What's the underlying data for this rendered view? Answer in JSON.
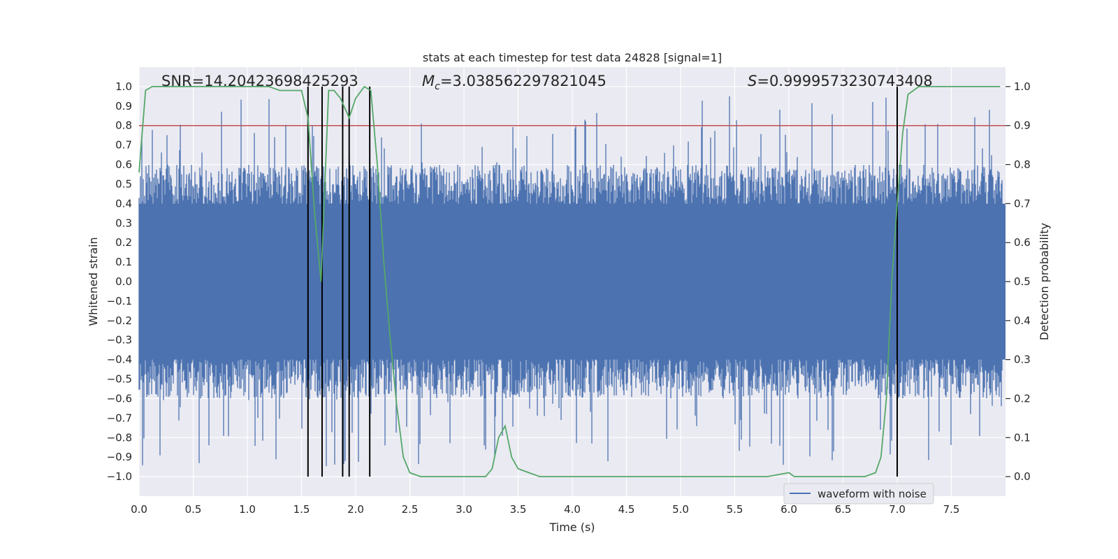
{
  "chart_data": {
    "type": "line",
    "title": "stats at each timestep for test data 24828 [signal=1]",
    "xlabel": "Time (s)",
    "ylabel": "Whitened strain",
    "y2label": "Detection probability",
    "xlim": [
      0.0,
      8.0
    ],
    "ylim": [
      -1.1,
      1.1
    ],
    "y2lim": [
      -0.05,
      1.05
    ],
    "x_ticks": [
      0.0,
      0.5,
      1.0,
      1.5,
      2.0,
      2.5,
      3.0,
      3.5,
      4.0,
      4.5,
      5.0,
      5.5,
      6.0,
      6.5,
      7.0,
      7.5
    ],
    "x_tick_labels": [
      "0.0",
      "0.5",
      "1.0",
      "1.5",
      "2.0",
      "2.5",
      "3.0",
      "3.5",
      "4.0",
      "4.5",
      "5.0",
      "5.5",
      "6.0",
      "6.5",
      "7.0",
      "7.5"
    ],
    "y_ticks": [
      -1.0,
      -0.9,
      -0.8,
      -0.7,
      -0.6,
      -0.5,
      -0.4,
      -0.3,
      -0.2,
      -0.1,
      0.0,
      0.1,
      0.2,
      0.3,
      0.4,
      0.5,
      0.6,
      0.7,
      0.8,
      0.9,
      1.0
    ],
    "y_tick_labels": [
      "−1.0",
      "−0.9",
      "−0.8",
      "−0.7",
      "−0.6",
      "−0.5",
      "−0.4",
      "−0.3",
      "−0.2",
      "−0.1",
      "0.0",
      "0.1",
      "0.2",
      "0.3",
      "0.4",
      "0.5",
      "0.6",
      "0.7",
      "0.8",
      "0.9",
      "1.0"
    ],
    "y2_ticks": [
      0.0,
      0.1,
      0.2,
      0.3,
      0.4,
      0.5,
      0.6,
      0.7,
      0.8,
      0.9,
      1.0
    ],
    "y2_tick_labels": [
      "0.0",
      "0.1",
      "0.2",
      "0.3",
      "0.4",
      "0.5",
      "0.6",
      "0.7",
      "0.8",
      "0.9",
      "1.0"
    ],
    "annotations": {
      "snr": "SNR=14.20423698425293",
      "mc_symbol": "M",
      "mc_sub": "c",
      "mc_value": "=3.038562297821045",
      "s_symbol": "S",
      "s_value": "=0.9999573230743408"
    },
    "threshold": {
      "value": 0.9,
      "axis": "y2",
      "color": "#c44e52"
    },
    "vertical_lines": [
      1.56,
      1.69,
      1.88,
      1.94,
      2.13,
      7.0
    ],
    "legend": {
      "position": "lower-right",
      "entries": [
        {
          "label": "waveform with noise",
          "color": "#4c72b0"
        }
      ]
    },
    "waveform": {
      "name": "waveform with noise",
      "color": "#4c72b0",
      "core_band": [
        -0.4,
        0.4
      ],
      "typical_range": [
        -0.55,
        0.55
      ],
      "max_excursions": [
        0.99,
        -0.99
      ],
      "note": "dense noisy signal spanning 0-8 s"
    },
    "series": [
      {
        "name": "detection probability",
        "axis": "y2",
        "color": "#55a868",
        "x": [
          0.0,
          0.06,
          0.12,
          0.2,
          0.4,
          0.6,
          0.8,
          1.0,
          1.2,
          1.3,
          1.4,
          1.5,
          1.56,
          1.62,
          1.68,
          1.75,
          1.8,
          1.86,
          1.94,
          2.0,
          2.08,
          2.14,
          2.2,
          2.26,
          2.32,
          2.38,
          2.44,
          2.5,
          2.6,
          2.8,
          2.98,
          3.1,
          3.2,
          3.26,
          3.32,
          3.38,
          3.44,
          3.5,
          3.6,
          3.7,
          3.8,
          4.0,
          4.2,
          4.5,
          5.0,
          5.1,
          5.3,
          5.5,
          5.7,
          5.8,
          5.9,
          6.0,
          6.05,
          6.1,
          6.2,
          6.5,
          6.7,
          6.8,
          6.85,
          6.9,
          6.95,
          7.0,
          7.05,
          7.1,
          7.2,
          7.5,
          7.95
        ],
        "values": [
          0.78,
          0.99,
          1.0,
          1.0,
          1.0,
          1.0,
          1.0,
          1.0,
          1.0,
          0.99,
          0.99,
          0.99,
          0.92,
          0.68,
          0.5,
          0.99,
          0.99,
          0.97,
          0.92,
          0.97,
          1.0,
          0.99,
          0.8,
          0.55,
          0.35,
          0.18,
          0.05,
          0.01,
          0.0,
          0.0,
          0.0,
          0.0,
          0.0,
          0.02,
          0.1,
          0.13,
          0.05,
          0.02,
          0.01,
          0.0,
          0.0,
          0.0,
          0.0,
          0.0,
          0.0,
          0.0,
          0.0,
          0.0,
          0.0,
          0.0,
          0.005,
          0.01,
          0.0,
          0.0,
          0.0,
          0.0,
          0.0,
          0.01,
          0.05,
          0.2,
          0.5,
          0.7,
          0.88,
          0.98,
          1.0,
          1.0,
          1.0
        ]
      }
    ]
  }
}
